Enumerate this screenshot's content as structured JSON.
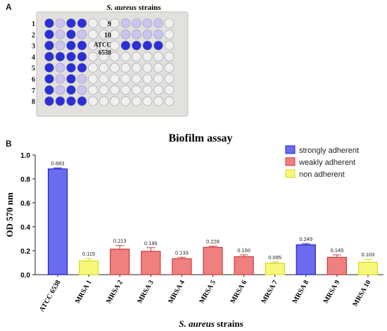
{
  "panel_a": {
    "label": "A",
    "plate_title_italic": "S. aureus",
    "plate_title_rest": " strains",
    "row_labels": [
      "1",
      "2",
      "3",
      "4",
      "5",
      "6",
      "7",
      "8"
    ],
    "right_labels": [
      "9",
      "10",
      "ATCC\n6538"
    ],
    "colors": {
      "plate_bg": "#e7e4e1",
      "stained": "#2a2fd6",
      "light": "#c9c4f0",
      "empty": "#f1f0ee"
    }
  },
  "panel_b": {
    "label": "B"
  },
  "chart_data": {
    "type": "bar",
    "title": "Biofilm assay",
    "xlabel_italic": "S. aureus",
    "xlabel_rest": " strains",
    "ylabel": "OD 570 nm",
    "ylim": [
      0,
      1.0
    ],
    "yticks": [
      "0.0",
      "0.2",
      "0.4",
      "0.6",
      "0.8",
      "1.0"
    ],
    "categories": [
      "ATCC 6538",
      "MRSA 1",
      "MRSA 2",
      "MRSA 3",
      "MRSA 4",
      "MRSA 5",
      "MRSA 6",
      "MRSA 7",
      "MRSA 8",
      "MRSA 9",
      "MRSA 10"
    ],
    "values": [
      0.883,
      0.115,
      0.213,
      0.195,
      0.133,
      0.228,
      0.15,
      0.095,
      0.249,
      0.145,
      0.103
    ],
    "value_labels": [
      "0.883",
      "0.115",
      "0.213",
      "0.195",
      "0.133",
      "0.228",
      "0.150",
      "0.095",
      "0.249",
      "0.145",
      "0.103"
    ],
    "errors": [
      0.008,
      0.02,
      0.03,
      0.03,
      0.012,
      0.01,
      0.015,
      0.01,
      0.01,
      0.02,
      0.025
    ],
    "groups": [
      "strong",
      "non",
      "weak",
      "weak",
      "weak",
      "weak",
      "weak",
      "non",
      "strong",
      "weak",
      "non"
    ],
    "legend": [
      {
        "key": "strong",
        "label": "strongly adherent",
        "fill": "#6b6bf0",
        "stroke": "#2222c8"
      },
      {
        "key": "weak",
        "label": "weakly adherent",
        "fill": "#f08080",
        "stroke": "#c83a3a"
      },
      {
        "key": "non",
        "label": "non adherent",
        "fill": "#f7f77a",
        "stroke": "#d8d820"
      }
    ],
    "legend_position": "top-right",
    "grid": false
  }
}
